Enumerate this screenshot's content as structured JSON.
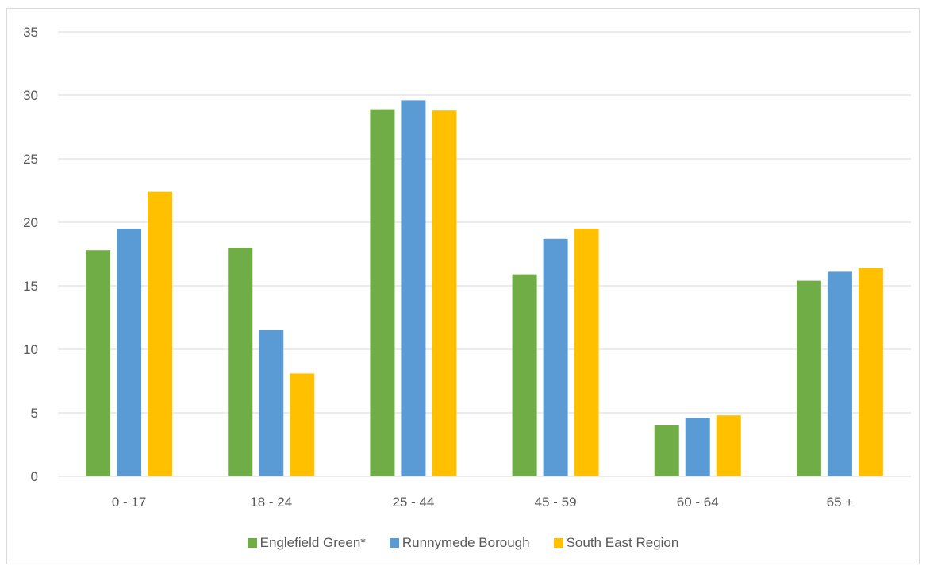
{
  "chart_data": {
    "type": "bar",
    "title": "",
    "xlabel": "",
    "ylabel": "",
    "categories": [
      "0 - 17",
      "18 - 24",
      "25 - 44",
      "45 - 59",
      "60 - 64",
      "65 +"
    ],
    "series": [
      {
        "name": "Englefield Green*",
        "color": "#70ad47",
        "values": [
          17.8,
          18.0,
          28.9,
          15.9,
          4.0,
          15.4
        ]
      },
      {
        "name": "Runnymede Borough",
        "color": "#5b9bd5",
        "values": [
          19.5,
          11.5,
          29.6,
          18.7,
          4.6,
          16.1
        ]
      },
      {
        "name": "South East Region",
        "color": "#ffc000",
        "values": [
          22.4,
          8.1,
          28.8,
          19.5,
          4.8,
          16.4
        ]
      }
    ],
    "ylim": [
      0,
      35
    ],
    "yticks": [
      0,
      5,
      10,
      15,
      20,
      25,
      30,
      35
    ],
    "grid": true,
    "legend_position": "bottom"
  }
}
